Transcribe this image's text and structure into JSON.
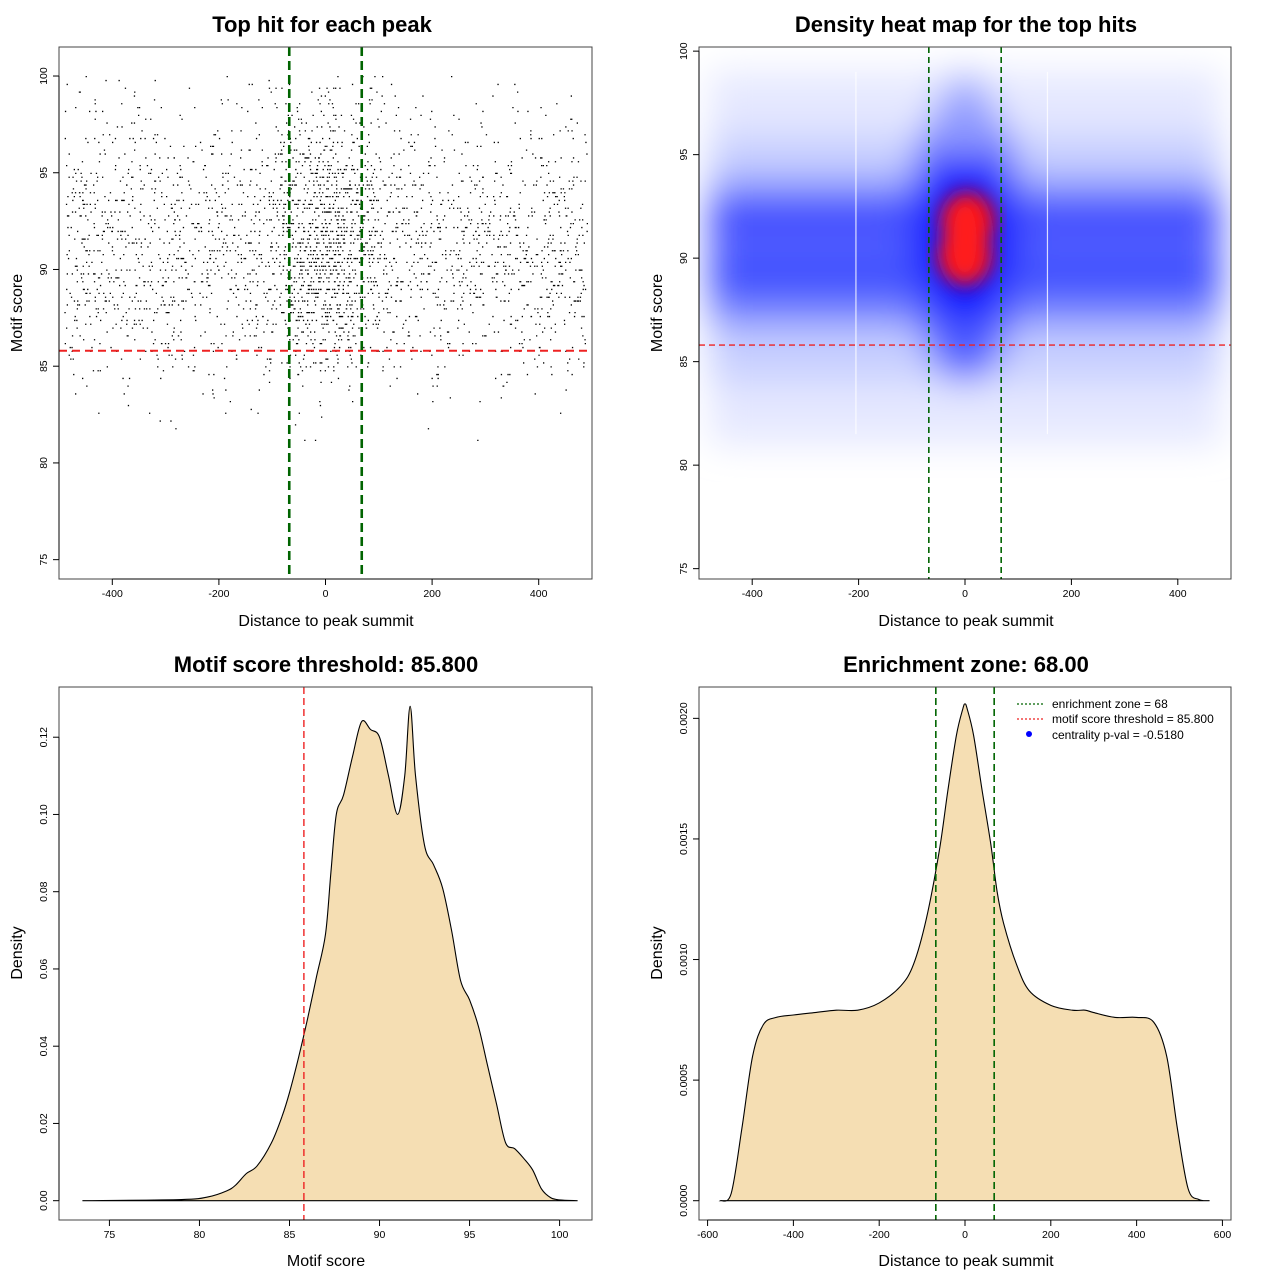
{
  "colors": {
    "enrichment": "#006400",
    "threshold": "#ee2222",
    "fill": "#f5deb3",
    "points": "#000000",
    "heat_low": "#ffffff",
    "heat_mid": "#0000ff",
    "heat_high": "#ff0000"
  },
  "chart_data": [
    {
      "type": "scatter",
      "title": "Top hit for each peak",
      "xlabel": "Distance to peak summit",
      "ylabel": "Motif score",
      "xlim": [
        -500,
        500
      ],
      "ylim": [
        74,
        101.5
      ],
      "xticks": [
        -400,
        -200,
        0,
        200,
        400
      ],
      "yticks": [
        75,
        80,
        85,
        90,
        95,
        100
      ],
      "vlines": [
        -68,
        68
      ],
      "hline": 85.8,
      "point_cloud": {
        "x_range": [
          -490,
          490
        ],
        "score_peaks": [
          88.5,
          90,
          91.8,
          95
        ],
        "score_range": [
          79.5,
          100
        ],
        "n_points_approx": 20000
      }
    },
    {
      "type": "heatmap",
      "title": "Density heat map for the top hits",
      "xlabel": "Distance to peak summit",
      "ylabel": "Motif score",
      "xlim": [
        -500,
        500
      ],
      "ylim": [
        74.5,
        100.2
      ],
      "xticks": [
        -400,
        -200,
        0,
        200,
        400
      ],
      "yticks": [
        75,
        80,
        85,
        90,
        95,
        100
      ],
      "vlines": [
        -68,
        68
      ],
      "hline": 85.8,
      "color_scale": [
        "white",
        "blue",
        "red"
      ],
      "hot_spots": [
        {
          "x": 0,
          "y": 90.1,
          "level": "high"
        },
        {
          "x": 5,
          "y": 91.8,
          "level": "high"
        }
      ]
    },
    {
      "type": "area",
      "title": "Motif score threshold: 85.800",
      "xlabel": "Motif score",
      "ylabel": "Density",
      "xlim": [
        72.2,
        101.8
      ],
      "ylim": [
        -0.005,
        0.133
      ],
      "xticks": [
        75,
        80,
        85,
        90,
        95,
        100
      ],
      "yticks": [
        0.0,
        0.02,
        0.04,
        0.06,
        0.08,
        0.1,
        0.12
      ],
      "ytick_labels": [
        "0.00",
        "0.02",
        "0.04",
        "0.06",
        "0.08",
        "0.10",
        "0.12"
      ],
      "vline": 85.8,
      "x": [
        73.5,
        79,
        80.5,
        81.5,
        82,
        82.6,
        83.2,
        84,
        84.6,
        85,
        85.5,
        86,
        86.5,
        87,
        87.3,
        87.6,
        88,
        88.5,
        89,
        89.5,
        90,
        90.5,
        91,
        91.4,
        91.7,
        92,
        92.5,
        93,
        93.5,
        94,
        94.5,
        95,
        95.5,
        96,
        96.5,
        97,
        97.5,
        98,
        98.5,
        99,
        99.5,
        100,
        101
      ],
      "y": [
        0.0,
        0.0003,
        0.001,
        0.0025,
        0.004,
        0.007,
        0.009,
        0.015,
        0.022,
        0.028,
        0.037,
        0.047,
        0.058,
        0.069,
        0.085,
        0.1,
        0.105,
        0.115,
        0.124,
        0.122,
        0.12,
        0.11,
        0.1,
        0.11,
        0.128,
        0.11,
        0.092,
        0.087,
        0.081,
        0.07,
        0.057,
        0.052,
        0.045,
        0.035,
        0.025,
        0.015,
        0.0135,
        0.011,
        0.008,
        0.003,
        0.0008,
        0.0002,
        0.0
      ]
    },
    {
      "type": "area",
      "title": "Enrichment zone: 68.00",
      "xlabel": "Distance to peak summit",
      "ylabel": "Density",
      "xlim": [
        -620,
        620
      ],
      "ylim": [
        -8e-05,
        0.00213
      ],
      "xticks": [
        -600,
        -400,
        -200,
        0,
        200,
        400,
        600
      ],
      "yticks": [
        0.0,
        0.0005,
        0.001,
        0.0015,
        0.002
      ],
      "ytick_labels": [
        "0.0000",
        "0.0005",
        "0.0010",
        "0.0015",
        "0.0020"
      ],
      "vlines": [
        -68,
        68
      ],
      "x": [
        -570,
        -545,
        -520,
        -495,
        -470,
        -440,
        -400,
        -350,
        -300,
        -250,
        -200,
        -150,
        -120,
        -90,
        -60,
        -40,
        -20,
        -5,
        0,
        5,
        20,
        40,
        60,
        75,
        90,
        120,
        150,
        200,
        250,
        280,
        300,
        350,
        400,
        440,
        470,
        495,
        520,
        545,
        570
      ],
      "y": [
        0.0,
        3e-05,
        0.0003,
        0.0006,
        0.00073,
        0.00076,
        0.00077,
        0.00078,
        0.00079,
        0.00079,
        0.00082,
        0.00089,
        0.00098,
        0.00117,
        0.00145,
        0.0017,
        0.00193,
        0.00204,
        0.00206,
        0.00204,
        0.00193,
        0.0017,
        0.00148,
        0.00128,
        0.00115,
        0.00098,
        0.00087,
        0.00081,
        0.00079,
        0.00079,
        0.00078,
        0.00076,
        0.00076,
        0.00074,
        0.0006,
        0.0003,
        5e-05,
        5e-06,
        0.0
      ],
      "legend": {
        "position": "top-right",
        "entries": [
          "enrichment zone = 68",
          "motif score threshold = 85.800",
          "centrality p-val = -0.5180"
        ]
      }
    }
  ]
}
